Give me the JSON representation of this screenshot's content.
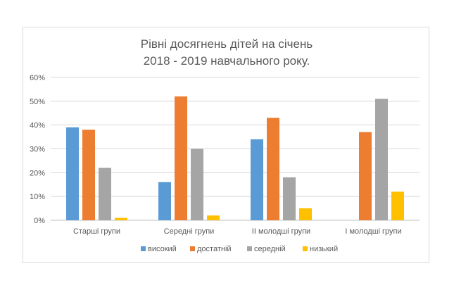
{
  "chart_data": {
    "type": "bar",
    "title_lines": [
      "Рівні досягнень дітей на січень",
      "2018 - 2019 навчального року."
    ],
    "categories": [
      "Старші групи",
      "Середні групи",
      "ІІ молодші групи",
      "І молодші групи"
    ],
    "series": [
      {
        "name": "високий",
        "color": "#5b9bd5",
        "values": [
          39,
          16,
          34,
          0
        ]
      },
      {
        "name": "достатній",
        "color": "#ed7d31",
        "values": [
          38,
          52,
          43,
          37
        ]
      },
      {
        "name": "середній",
        "color": "#a5a5a5",
        "values": [
          22,
          30,
          18,
          51
        ]
      },
      {
        "name": "низький",
        "color": "#ffc000",
        "values": [
          1,
          2,
          5,
          12
        ]
      }
    ],
    "ylim": [
      0,
      60
    ],
    "yticks": [
      "0%",
      "10%",
      "20%",
      "30%",
      "40%",
      "50%",
      "60%"
    ],
    "grid": true,
    "legend": "bottom"
  }
}
